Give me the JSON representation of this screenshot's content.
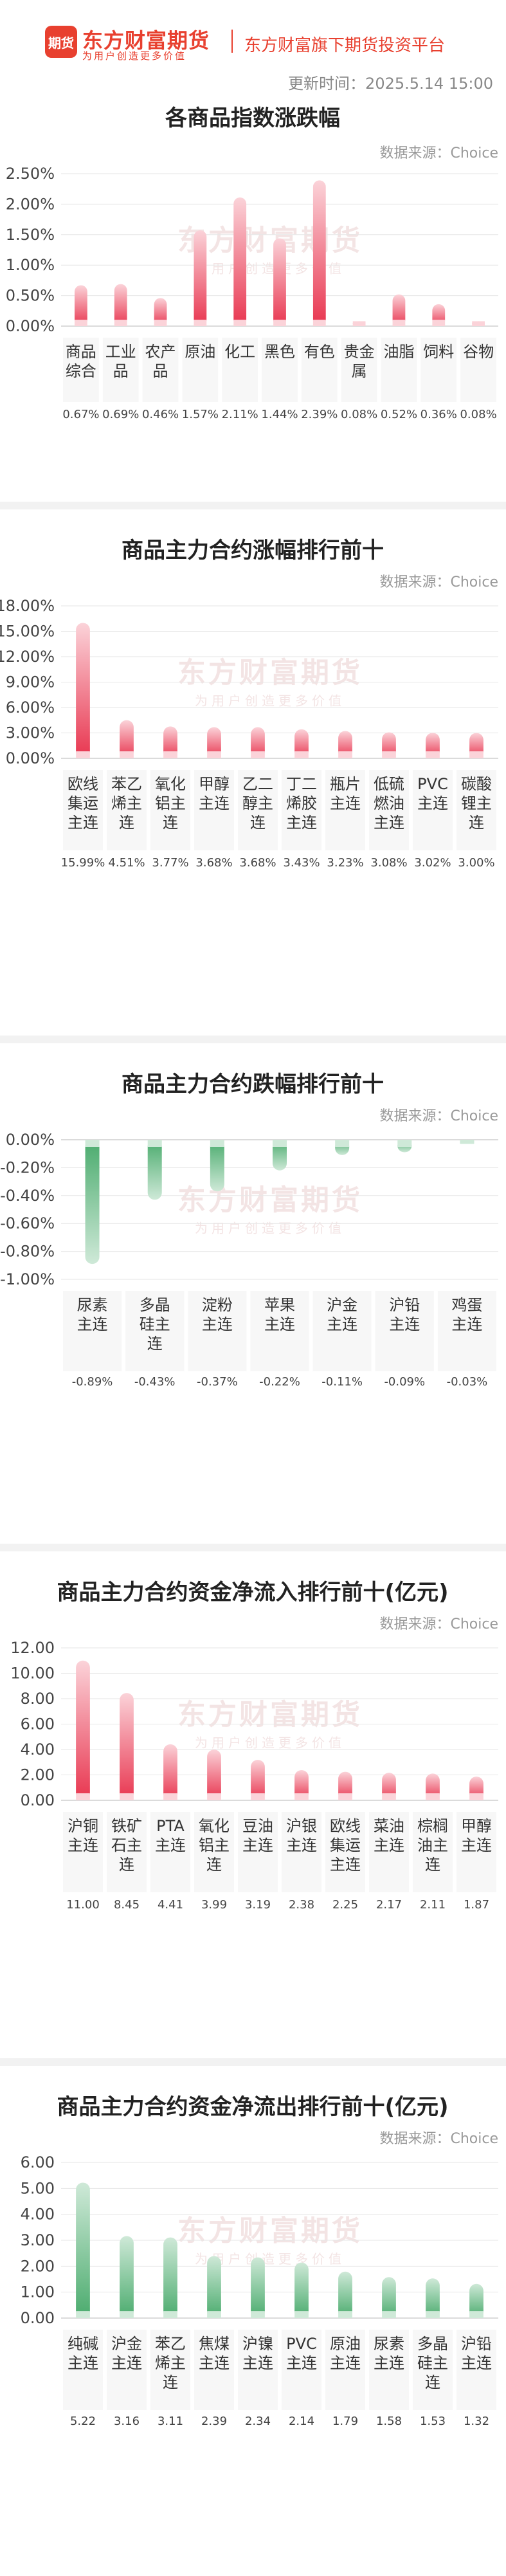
{
  "header": {
    "logo_text": "期货",
    "brand_name": "东方财富期货",
    "brand_slogan": "为用户创造更多价值",
    "platform": "东方财富旗下期货投资平台",
    "update_time": "更新时间：2025.5.14 15:00"
  },
  "watermark": {
    "line1": "东方财富期货",
    "line2": "为用户创造更多价值"
  },
  "colors": {
    "up": "#e8354f",
    "down": "#4aab6d",
    "up_light": "#fbd3d9",
    "down_light": "#cfe9d8"
  },
  "chart_data": [
    {
      "type": "bar",
      "title": "各商品指数涨跌幅",
      "source": "数据来源：Choice",
      "categories": [
        "商品综合",
        "工业品",
        "农产品",
        "原油",
        "化工",
        "黑色",
        "有色",
        "贵金属",
        "油脂",
        "饲料",
        "谷物"
      ],
      "values": [
        0.67,
        0.69,
        0.46,
        1.57,
        2.11,
        1.44,
        2.39,
        0.08,
        0.52,
        0.36,
        0.08
      ],
      "value_labels": [
        "0.67%",
        "0.69%",
        "0.46%",
        "1.57%",
        "2.11%",
        "1.44%",
        "2.39%",
        "0.08%",
        "0.52%",
        "0.36%",
        "0.08%"
      ],
      "yticks": [
        "2.50%",
        "2.00%",
        "1.50%",
        "1.00%",
        "0.50%",
        "0.00%"
      ],
      "ylim": [
        0,
        2.5
      ],
      "sign": "up"
    },
    {
      "type": "bar",
      "title": "商品主力合约涨幅排行前十",
      "source": "数据来源：Choice",
      "categories": [
        "欧线集运主连",
        "苯乙烯主连",
        "氧化铝主连",
        "甲醇主连",
        "乙二醇主连",
        "丁二烯胶主连",
        "瓶片主连",
        "低硫燃油主连",
        "PVC主连",
        "碳酸锂主连"
      ],
      "values": [
        15.99,
        4.51,
        3.77,
        3.68,
        3.68,
        3.43,
        3.23,
        3.08,
        3.02,
        3.0
      ],
      "value_labels": [
        "15.99%",
        "4.51%",
        "3.77%",
        "3.68%",
        "3.68%",
        "3.43%",
        "3.23%",
        "3.08%",
        "3.02%",
        "3.00%"
      ],
      "yticks": [
        "18.00%",
        "15.00%",
        "12.00%",
        "9.00%",
        "6.00%",
        "3.00%",
        "0.00%"
      ],
      "ylim": [
        0,
        18
      ],
      "sign": "up"
    },
    {
      "type": "bar",
      "title": "商品主力合约跌幅排行前十",
      "source": "数据来源：Choice",
      "categories": [
        "尿素主连",
        "多晶硅主连",
        "淀粉主连",
        "苹果主连",
        "沪金主连",
        "沪铅主连",
        "鸡蛋主连"
      ],
      "values": [
        -0.89,
        -0.43,
        -0.37,
        -0.22,
        -0.11,
        -0.09,
        -0.03
      ],
      "value_labels": [
        "-0.89%",
        "-0.43%",
        "-0.37%",
        "-0.22%",
        "-0.11%",
        "-0.09%",
        "-0.03%"
      ],
      "yticks": [
        "0.00%",
        "-0.20%",
        "-0.40%",
        "-0.60%",
        "-0.80%",
        "-1.00%"
      ],
      "ylim": [
        -1.0,
        0
      ],
      "sign": "down"
    },
    {
      "type": "bar",
      "title": "商品主力合约资金净流入排行前十(亿元)",
      "source": "数据来源：Choice",
      "categories": [
        "沪铜主连",
        "铁矿石主连",
        "PTA主连",
        "氧化铝主连",
        "豆油主连",
        "沪银主连",
        "欧线集运主连",
        "菜油主连",
        "棕榈油主连",
        "甲醇主连"
      ],
      "values": [
        11.0,
        8.45,
        4.41,
        3.99,
        3.19,
        2.38,
        2.25,
        2.17,
        2.11,
        1.87
      ],
      "value_labels": [
        "11.00",
        "8.45",
        "4.41",
        "3.99",
        "3.19",
        "2.38",
        "2.25",
        "2.17",
        "2.11",
        "1.87"
      ],
      "yticks": [
        "12.00",
        "10.00",
        "8.00",
        "6.00",
        "4.00",
        "2.00",
        "0.00"
      ],
      "ylim": [
        0,
        12
      ],
      "sign": "up"
    },
    {
      "type": "bar",
      "title": "商品主力合约资金净流出排行前十(亿元)",
      "source": "数据来源：Choice",
      "categories": [
        "纯碱主连",
        "沪金主连",
        "苯乙烯主连",
        "焦煤主连",
        "沪镍主连",
        "PVC主连",
        "原油主连",
        "尿素主连",
        "多晶硅主连",
        "沪铅主连"
      ],
      "values": [
        5.22,
        3.16,
        3.11,
        2.39,
        2.34,
        2.14,
        1.79,
        1.58,
        1.53,
        1.32
      ],
      "value_labels": [
        "5.22",
        "3.16",
        "3.11",
        "2.39",
        "2.34",
        "2.14",
        "1.79",
        "1.58",
        "1.53",
        "1.32"
      ],
      "yticks": [
        "6.00",
        "5.00",
        "4.00",
        "3.00",
        "2.00",
        "1.00",
        "0.00"
      ],
      "ylim": [
        0,
        6
      ],
      "sign": "down"
    }
  ]
}
